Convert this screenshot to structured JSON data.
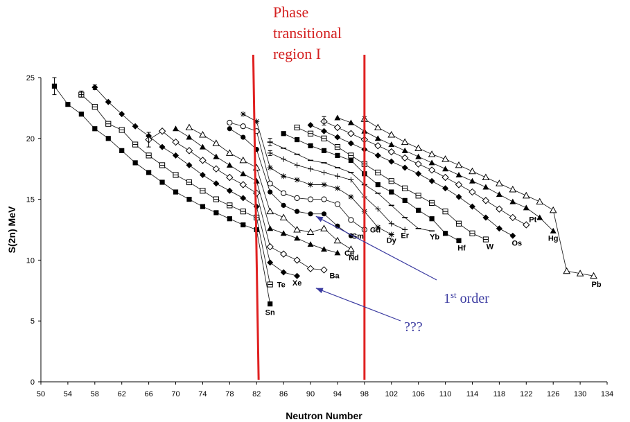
{
  "chart_data": {
    "type": "line",
    "xlabel": "Neutron Number",
    "ylabel": "S(2n) MeV",
    "xlim": [
      50,
      134
    ],
    "ylim": [
      0,
      25
    ],
    "xticks": [
      50,
      54,
      58,
      62,
      66,
      70,
      74,
      78,
      82,
      86,
      90,
      94,
      98,
      102,
      106,
      110,
      114,
      118,
      122,
      126,
      130,
      134
    ],
    "yticks": [
      0,
      5,
      10,
      15,
      20,
      25
    ],
    "grid": false,
    "series": [
      {
        "name": "Sn",
        "marker": "square-filled",
        "points": [
          [
            52,
            24.3
          ],
          [
            54,
            22.8
          ],
          [
            56,
            22.0
          ],
          [
            58,
            20.8
          ],
          [
            60,
            20.0
          ],
          [
            62,
            19.0
          ],
          [
            64,
            18.0
          ],
          [
            66,
            17.2
          ],
          [
            68,
            16.4
          ],
          [
            70,
            15.6
          ],
          [
            72,
            15.0
          ],
          [
            74,
            14.4
          ],
          [
            76,
            13.9
          ],
          [
            78,
            13.4
          ],
          [
            80,
            12.9
          ],
          [
            82,
            12.5
          ],
          [
            84,
            6.4
          ]
        ]
      },
      {
        "name": "Te",
        "marker": "square-open-plus",
        "points": [
          [
            56,
            23.6
          ],
          [
            58,
            22.6
          ],
          [
            60,
            21.2
          ],
          [
            62,
            20.7
          ],
          [
            64,
            19.5
          ],
          [
            66,
            18.6
          ],
          [
            68,
            17.8
          ],
          [
            70,
            17.0
          ],
          [
            72,
            16.4
          ],
          [
            74,
            15.7
          ],
          [
            76,
            15.0
          ],
          [
            78,
            14.5
          ],
          [
            80,
            14.0
          ],
          [
            82,
            13.5
          ],
          [
            84,
            8.0
          ]
        ]
      },
      {
        "name": "Xe",
        "marker": "diamond-filled",
        "points": [
          [
            58,
            24.2
          ],
          [
            60,
            23.0
          ],
          [
            62,
            22.0
          ],
          [
            64,
            21.0
          ],
          [
            66,
            20.2
          ],
          [
            68,
            19.3
          ],
          [
            70,
            18.6
          ],
          [
            72,
            17.8
          ],
          [
            74,
            17.0
          ],
          [
            76,
            16.3
          ],
          [
            78,
            15.7
          ],
          [
            80,
            15.1
          ],
          [
            82,
            14.4
          ],
          [
            84,
            9.8
          ],
          [
            86,
            9.0
          ],
          [
            88,
            8.7
          ]
        ]
      },
      {
        "name": "Ba",
        "marker": "diamond-open",
        "points": [
          [
            66,
            19.9
          ],
          [
            68,
            20.6
          ],
          [
            70,
            19.7
          ],
          [
            72,
            19.0
          ],
          [
            74,
            18.2
          ],
          [
            76,
            17.5
          ],
          [
            78,
            16.8
          ],
          [
            80,
            16.2
          ],
          [
            82,
            15.5
          ],
          [
            84,
            11.1
          ],
          [
            86,
            10.5
          ],
          [
            88,
            10.0
          ],
          [
            90,
            9.3
          ],
          [
            92,
            9.2
          ]
        ]
      },
      {
        "name": "Ce",
        "marker": "triangle-filled",
        "points": [
          [
            70,
            20.8
          ],
          [
            72,
            20.1
          ],
          [
            74,
            19.3
          ],
          [
            76,
            18.5
          ],
          [
            78,
            17.8
          ],
          [
            80,
            17.1
          ],
          [
            82,
            16.5
          ],
          [
            84,
            12.6
          ],
          [
            86,
            12.2
          ],
          [
            88,
            11.8
          ],
          [
            90,
            11.3
          ],
          [
            92,
            10.9
          ],
          [
            94,
            10.6
          ]
        ]
      },
      {
        "name": "Nd",
        "marker": "triangle-open",
        "points": [
          [
            72,
            20.9
          ],
          [
            74,
            20.3
          ],
          [
            76,
            19.6
          ],
          [
            78,
            18.8
          ],
          [
            80,
            18.2
          ],
          [
            82,
            17.6
          ],
          [
            84,
            14.0
          ],
          [
            86,
            13.5
          ],
          [
            88,
            12.5
          ],
          [
            90,
            12.3
          ],
          [
            92,
            12.6
          ],
          [
            94,
            11.6
          ],
          [
            96,
            10.9
          ]
        ]
      },
      {
        "name": "Sm",
        "marker": "circle-filled",
        "points": [
          [
            78,
            20.8
          ],
          [
            80,
            20.1
          ],
          [
            82,
            19.1
          ],
          [
            84,
            15.6
          ],
          [
            86,
            14.5
          ],
          [
            88,
            14.0
          ],
          [
            90,
            13.8
          ],
          [
            92,
            13.8
          ],
          [
            94,
            12.8
          ],
          [
            96,
            12.0
          ]
        ]
      },
      {
        "name": "Gd",
        "marker": "circle-open",
        "points": [
          [
            78,
            21.3
          ],
          [
            80,
            21.0
          ],
          [
            82,
            20.6
          ],
          [
            84,
            16.3
          ],
          [
            86,
            15.5
          ],
          [
            88,
            15.1
          ],
          [
            90,
            15.0
          ],
          [
            92,
            15.0
          ],
          [
            94,
            14.6
          ],
          [
            96,
            13.3
          ],
          [
            98,
            12.5
          ]
        ]
      },
      {
        "name": "Dy",
        "marker": "asterisk",
        "points": [
          [
            80,
            22.0
          ],
          [
            82,
            21.4
          ],
          [
            84,
            17.6
          ],
          [
            86,
            16.9
          ],
          [
            88,
            16.6
          ],
          [
            90,
            16.2
          ],
          [
            92,
            16.2
          ],
          [
            94,
            15.9
          ],
          [
            96,
            15.2
          ],
          [
            98,
            14.0
          ],
          [
            100,
            12.7
          ],
          [
            102,
            12.1
          ]
        ]
      },
      {
        "name": "Er",
        "marker": "plus",
        "points": [
          [
            84,
            18.8
          ],
          [
            86,
            18.3
          ],
          [
            88,
            17.8
          ],
          [
            90,
            17.5
          ],
          [
            92,
            17.2
          ],
          [
            94,
            16.9
          ],
          [
            96,
            16.6
          ],
          [
            98,
            15.2
          ],
          [
            100,
            14.2
          ],
          [
            102,
            13.0
          ],
          [
            104,
            12.5
          ]
        ]
      },
      {
        "name": "Yb",
        "marker": "dash",
        "points": [
          [
            84,
            19.7
          ],
          [
            86,
            19.2
          ],
          [
            88,
            18.7
          ],
          [
            90,
            18.2
          ],
          [
            92,
            18.0
          ],
          [
            94,
            17.6
          ],
          [
            96,
            17.2
          ],
          [
            98,
            16.2
          ],
          [
            100,
            15.5
          ],
          [
            102,
            14.5
          ],
          [
            104,
            13.5
          ],
          [
            106,
            12.6
          ],
          [
            108,
            12.4
          ]
        ]
      },
      {
        "name": "Hf",
        "marker": "square-filled",
        "points": [
          [
            86,
            20.4
          ],
          [
            88,
            19.9
          ],
          [
            90,
            19.4
          ],
          [
            92,
            19.0
          ],
          [
            94,
            18.6
          ],
          [
            96,
            18.2
          ],
          [
            98,
            17.1
          ],
          [
            100,
            16.2
          ],
          [
            102,
            15.6
          ],
          [
            104,
            14.9
          ],
          [
            106,
            14.1
          ],
          [
            108,
            13.4
          ],
          [
            110,
            12.2
          ],
          [
            112,
            11.6
          ]
        ]
      },
      {
        "name": "W",
        "marker": "square-open-plus",
        "points": [
          [
            88,
            20.9
          ],
          [
            90,
            20.4
          ],
          [
            92,
            20.0
          ],
          [
            94,
            19.3
          ],
          [
            96,
            18.6
          ],
          [
            98,
            17.9
          ],
          [
            100,
            17.2
          ],
          [
            102,
            16.5
          ],
          [
            104,
            15.9
          ],
          [
            106,
            15.3
          ],
          [
            108,
            14.7
          ],
          [
            110,
            14.0
          ],
          [
            112,
            13.0
          ],
          [
            114,
            12.2
          ],
          [
            116,
            11.7
          ]
        ]
      },
      {
        "name": "Os",
        "marker": "diamond-filled",
        "points": [
          [
            90,
            21.1
          ],
          [
            92,
            20.6
          ],
          [
            94,
            20.1
          ],
          [
            96,
            19.6
          ],
          [
            98,
            19.1
          ],
          [
            100,
            18.6
          ],
          [
            102,
            18.1
          ],
          [
            104,
            17.6
          ],
          [
            106,
            17.1
          ],
          [
            108,
            16.5
          ],
          [
            110,
            15.9
          ],
          [
            112,
            15.2
          ],
          [
            114,
            14.4
          ],
          [
            116,
            13.5
          ],
          [
            118,
            12.6
          ],
          [
            120,
            12.0
          ]
        ]
      },
      {
        "name": "Pt",
        "marker": "diamond-open",
        "points": [
          [
            92,
            21.4
          ],
          [
            94,
            20.9
          ],
          [
            96,
            20.4
          ],
          [
            98,
            19.9
          ],
          [
            100,
            19.4
          ],
          [
            102,
            18.9
          ],
          [
            104,
            18.4
          ],
          [
            106,
            17.9
          ],
          [
            108,
            17.4
          ],
          [
            110,
            16.8
          ],
          [
            112,
            16.2
          ],
          [
            114,
            15.6
          ],
          [
            116,
            14.9
          ],
          [
            118,
            14.2
          ],
          [
            120,
            13.5
          ],
          [
            122,
            12.9
          ]
        ]
      },
      {
        "name": "Hg",
        "marker": "triangle-filled",
        "points": [
          [
            94,
            21.7
          ],
          [
            96,
            21.3
          ],
          [
            98,
            20.6
          ],
          [
            100,
            20.0
          ],
          [
            102,
            19.5
          ],
          [
            104,
            19.0
          ],
          [
            106,
            18.5
          ],
          [
            108,
            18.0
          ],
          [
            110,
            17.5
          ],
          [
            112,
            17.0
          ],
          [
            114,
            16.5
          ],
          [
            116,
            16.0
          ],
          [
            118,
            15.4
          ],
          [
            120,
            14.8
          ],
          [
            122,
            14.3
          ],
          [
            124,
            13.5
          ],
          [
            126,
            12.4
          ]
        ]
      },
      {
        "name": "Pb",
        "marker": "triangle-open",
        "points": [
          [
            98,
            21.6
          ],
          [
            100,
            20.9
          ],
          [
            102,
            20.3
          ],
          [
            104,
            19.7
          ],
          [
            106,
            19.2
          ],
          [
            108,
            18.7
          ],
          [
            110,
            18.3
          ],
          [
            112,
            17.8
          ],
          [
            114,
            17.3
          ],
          [
            116,
            16.8
          ],
          [
            118,
            16.3
          ],
          [
            120,
            15.8
          ],
          [
            122,
            15.3
          ],
          [
            124,
            14.8
          ],
          [
            126,
            14.1
          ],
          [
            128,
            9.1
          ],
          [
            130,
            8.9
          ],
          [
            132,
            8.7
          ]
        ]
      }
    ],
    "error_bars": [
      {
        "x": 52,
        "y": 24.3,
        "low": 23.6,
        "high": 25.0
      },
      {
        "x": 56,
        "y": 23.6,
        "low": 23.4,
        "high": 23.9
      },
      {
        "x": 58,
        "y": 24.2,
        "low": 24.0,
        "high": 24.4
      },
      {
        "x": 66,
        "y": 19.9,
        "low": 19.3,
        "high": 20.5
      },
      {
        "x": 84,
        "y": 19.7,
        "low": 19.4,
        "high": 20.0
      },
      {
        "x": 84,
        "y": 18.8,
        "low": 18.6,
        "high": 19.0
      },
      {
        "x": 92,
        "y": 21.4,
        "low": 21.1,
        "high": 21.8
      },
      {
        "x": 98,
        "y": 21.6,
        "low": 21.4,
        "high": 21.8
      }
    ],
    "region_lines": [
      {
        "x_top": 81.5,
        "x_bottom": 82.3,
        "color": "#e02020"
      },
      {
        "x": 98,
        "color": "#e02020"
      }
    ],
    "region_label": {
      "lines": [
        "Phase",
        "transitional",
        "region I"
      ],
      "color": "#d42020"
    },
    "annotations": [
      {
        "text": "1st order",
        "base": "1",
        "sup": "st",
        "rest": " order",
        "arrow_to": [
          90.8,
          13.6
        ],
        "color": "#3a3aa0"
      },
      {
        "text": "???",
        "arrow_to": [
          90.8,
          7.7
        ],
        "color": "#3a3aa0"
      }
    ]
  }
}
